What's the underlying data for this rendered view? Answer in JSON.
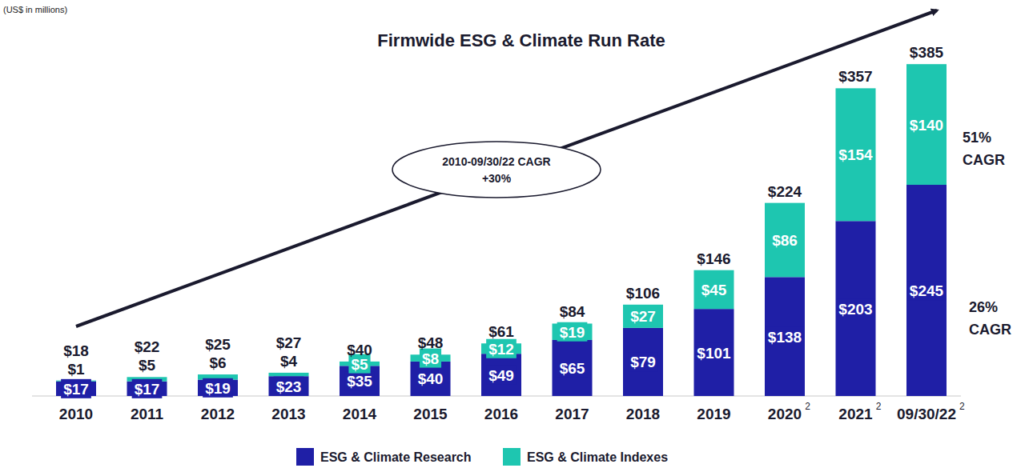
{
  "chart_data": {
    "type": "bar",
    "title": "Firmwide ESG & Climate Run Rate",
    "subtitle": "(US$ in millions)",
    "categories": [
      "2010",
      "2011",
      "2012",
      "2013",
      "2014",
      "2015",
      "2016",
      "2017",
      "2018",
      "2019",
      "2020",
      "2021",
      "09/30/22"
    ],
    "category_notes": [
      null,
      null,
      null,
      null,
      null,
      null,
      null,
      null,
      null,
      null,
      "2",
      "2",
      "2"
    ],
    "series": [
      {
        "name": "ESG & Climate Research",
        "color": "#1f1fa6",
        "values": [
          17,
          17,
          19,
          23,
          35,
          40,
          49,
          65,
          79,
          101,
          138,
          203,
          245
        ],
        "value_labels": [
          "$17",
          "$17",
          "$19",
          "$23",
          "$35",
          "$40",
          "$49",
          "$65",
          "$79",
          "$101",
          "$138",
          "$203",
          "$245"
        ]
      },
      {
        "name": "ESG & Climate Indexes",
        "color": "#1ec6b0",
        "values": [
          1,
          5,
          6,
          4,
          5,
          8,
          12,
          19,
          27,
          45,
          86,
          154,
          140
        ],
        "value_labels": [
          "$1",
          "$5",
          "$6",
          "$4",
          "$5",
          "$8",
          "$12",
          "$19",
          "$27",
          "$45",
          "$86",
          "$154",
          "$140"
        ]
      }
    ],
    "totals": [
      18,
      22,
      25,
      27,
      40,
      48,
      61,
      84,
      106,
      146,
      224,
      357,
      385
    ],
    "total_labels": [
      "$18",
      "$22",
      "$25",
      "$27",
      "$40",
      "$48",
      "$61",
      "$84",
      "$106",
      "$146",
      "$224",
      "$357",
      "$385"
    ],
    "annotations": [
      {
        "lines": [
          "2010-09/30/22 CAGR",
          "+30%"
        ]
      },
      {
        "lines": [
          "51%",
          "CAGR"
        ]
      },
      {
        "lines": [
          "26%",
          "CAGR"
        ]
      }
    ],
    "ylim": [
      0,
      400
    ],
    "stacked": true,
    "data_labels": true,
    "tick_labels": "x",
    "grid": false,
    "legend": "bottom"
  }
}
